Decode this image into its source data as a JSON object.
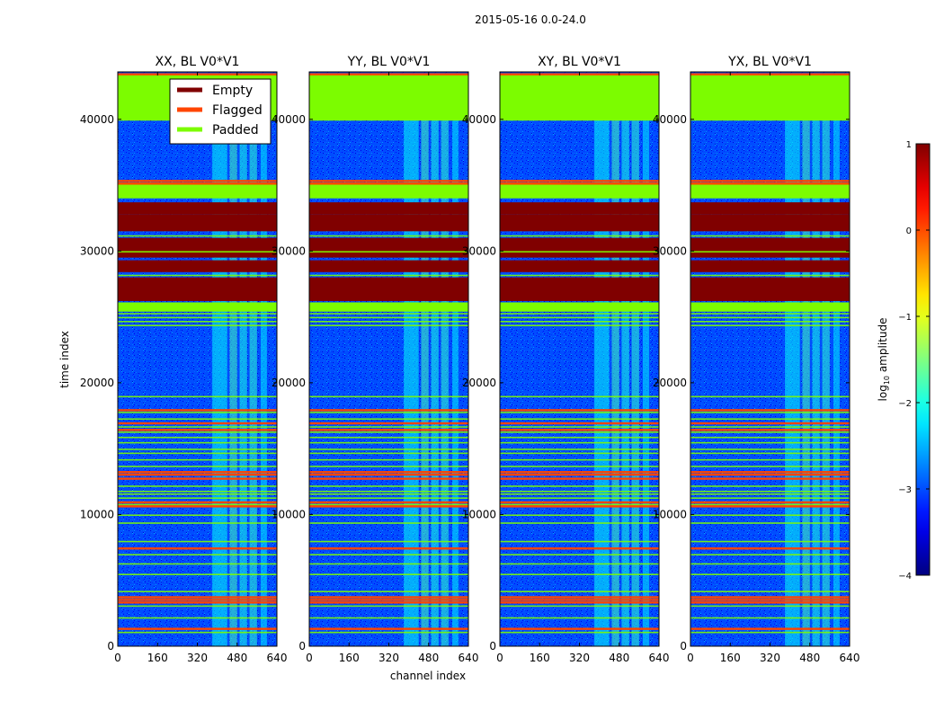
{
  "figure_title": "2015-05-16 0.0-24.0",
  "chart_data": {
    "type": "heatmap",
    "xlabel": "channel index",
    "ylabel": "time index",
    "xlim": [
      0,
      640
    ],
    "ylim": [
      0,
      43600
    ],
    "xticks": [
      0,
      160,
      320,
      480,
      640
    ],
    "yticks": [
      0,
      10000,
      20000,
      30000,
      40000
    ],
    "colorbar": {
      "label": "log10 amplitude",
      "label_main": "log",
      "label_sub": "10",
      "label_rest": " amplitude",
      "range": [
        -4,
        1
      ],
      "ticks": [
        "1",
        "0",
        "−1",
        "−2",
        "−3",
        "−4"
      ],
      "colormap": "jet"
    },
    "legend": {
      "placement": "top-left",
      "entries": [
        {
          "label": "Empty",
          "color": "#800000"
        },
        {
          "label": "Flagged",
          "color": "#ff4500"
        },
        {
          "label": "Padded",
          "color": "#7cfc00"
        }
      ]
    },
    "panels": [
      {
        "title": "XX, BL V0*V1"
      },
      {
        "title": "YY, BL V0*V1"
      },
      {
        "title": "XY, BL V0*V1"
      },
      {
        "title": "YX, BL V0*V1"
      }
    ],
    "row_regions": [
      {
        "kind": "padded",
        "from": 39900,
        "to": 43400
      },
      {
        "kind": "padded",
        "from": 34000,
        "to": 35200
      },
      {
        "kind": "empty",
        "from": 32800,
        "to": 33700
      },
      {
        "kind": "empty",
        "from": 31500,
        "to": 32800
      },
      {
        "kind": "empty",
        "from": 29500,
        "to": 31000
      },
      {
        "kind": "empty",
        "from": 28400,
        "to": 29300
      },
      {
        "kind": "empty",
        "from": 26200,
        "to": 28000
      },
      {
        "kind": "padded",
        "from": 25400,
        "to": 26100
      }
    ],
    "padded_lines": [
      43450,
      31200,
      30000,
      28200,
      25300,
      25000,
      24700,
      24400,
      19000,
      17800,
      17300,
      16700,
      16300,
      15900,
      15500,
      15000,
      14700,
      14200,
      13700,
      12200,
      11800,
      11600,
      11300,
      10800,
      10000,
      9400,
      8000,
      7000,
      6300,
      5500,
      4200,
      3100,
      2200,
      1100
    ],
    "flagged_lines": [
      43500,
      35400,
      35200,
      18000,
      17000,
      16500,
      13300,
      13100,
      12800,
      11000,
      10700,
      7500,
      3800,
      3600,
      3400,
      1400
    ],
    "bright_bands": [
      {
        "x": [
          380,
          440
        ],
        "level": -2.1
      },
      {
        "x": [
          450,
          480
        ],
        "level": -1.8
      },
      {
        "x": [
          490,
          520
        ],
        "level": -2.0
      },
      {
        "x": [
          530,
          560
        ],
        "level": -1.9
      },
      {
        "x": [
          575,
          600
        ],
        "level": -2.2
      }
    ],
    "background_level": -3.0
  }
}
